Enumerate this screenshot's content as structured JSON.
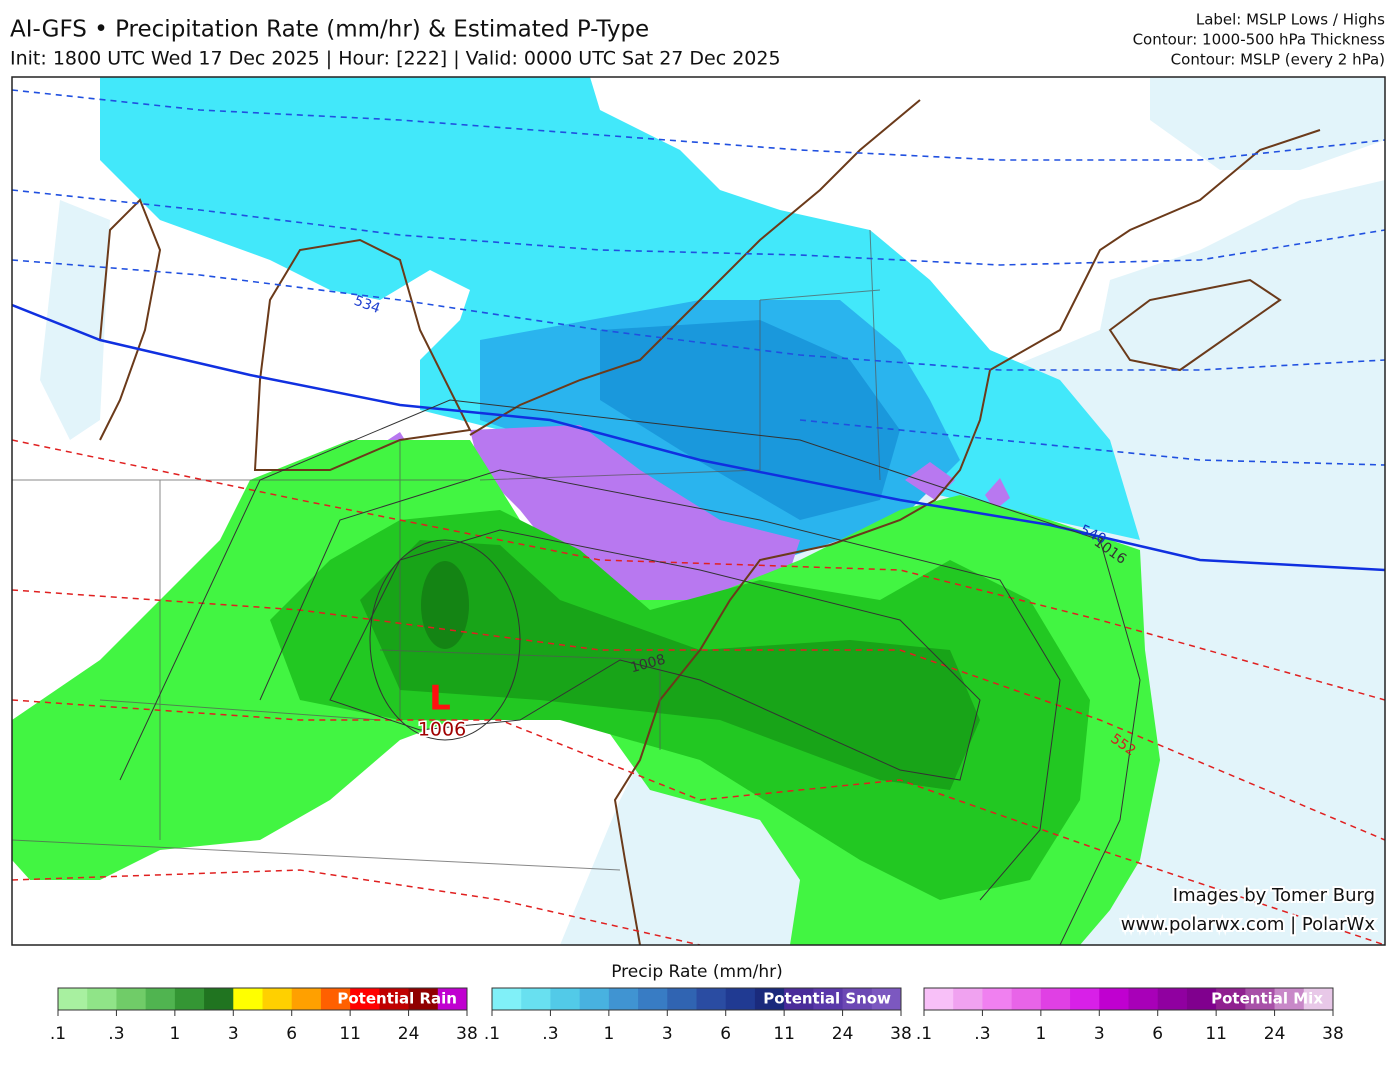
{
  "header": {
    "title": "AI-GFS • Precipitation Rate (mm/hr) & Estimated P-Type",
    "subtitle": "Init: 1800 UTC Wed 17 Dec 2025 | Hour: [222] | Valid: 0000 UTC Sat 27 Dec 2025",
    "legend_lines": [
      "Label: MSLP Lows / Highs",
      "Contour: 1000-500 hPa Thickness",
      "Contour: MSLP (every 2 hPa)"
    ]
  },
  "map": {
    "contour_labels": [
      "534",
      "540",
      "1016",
      "552",
      "1008"
    ],
    "low": {
      "symbol": "L",
      "pressure": "1006"
    },
    "credits": [
      "Images by Tomer Burg",
      "www.polarwx.com | PolarWx"
    ]
  },
  "colorbar": {
    "title": "Precip Rate (mm/hr)",
    "bars": [
      {
        "name": "Potential Rain",
        "ticks": [
          ".1",
          ".3",
          "1",
          "3",
          "6",
          "11",
          "24",
          "38"
        ]
      },
      {
        "name": "Potential Snow",
        "ticks": [
          ".1",
          ".3",
          "1",
          "3",
          "6",
          "11",
          "24",
          "38"
        ]
      },
      {
        "name": "Potential Mix",
        "ticks": [
          ".1",
          ".3",
          "1",
          "3",
          "6",
          "11",
          "24",
          "38"
        ]
      }
    ]
  }
}
